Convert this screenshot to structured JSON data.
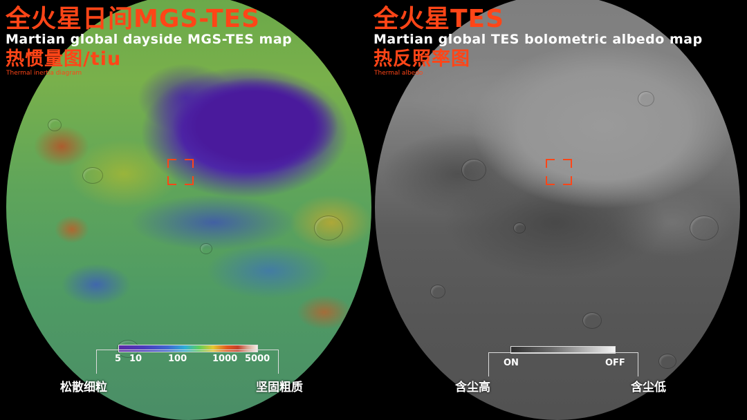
{
  "left_panel": {
    "title": "全火星日间MGS-TES",
    "subtitle": "Martian global dayside MGS-TES map",
    "map_title": "热惯量图/tiu",
    "map_title_en": "Thermal inertia diagram",
    "scale_ticks": [
      "5",
      "10",
      "100",
      "1000",
      "5000"
    ],
    "end_label_left": "松散细粒",
    "end_label_right": "坚固粗质"
  },
  "right_panel": {
    "title": "全火星TES",
    "subtitle": "Martian global TES bolometric albedo map",
    "map_title": "热反照率图",
    "map_title_en": "Thermal albedo",
    "scale_ticks": [
      "ON",
      "OFF"
    ],
    "end_label_left": "含尘高",
    "end_label_right": "含尘低"
  },
  "colors": {
    "accent": "#ff4517",
    "background": "#000000"
  }
}
